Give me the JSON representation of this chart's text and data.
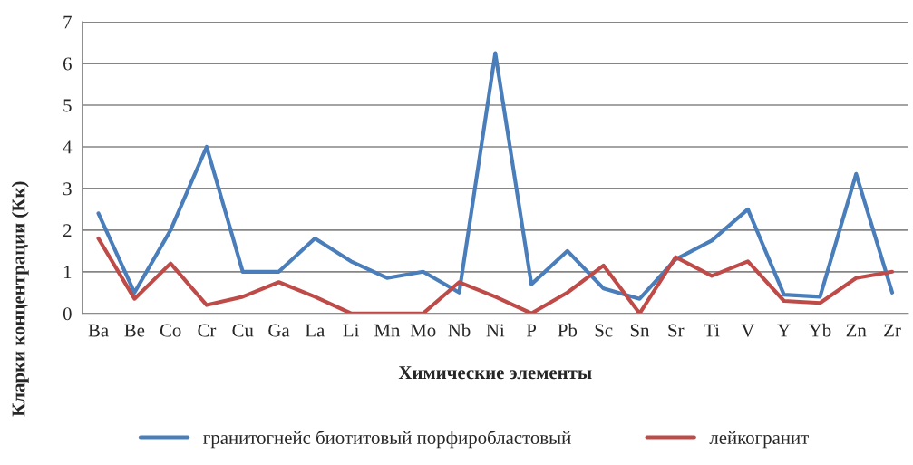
{
  "chart_data": {
    "type": "line",
    "xlabel": "Химические элементы",
    "ylabel": "Кларки концентрации (Кк)",
    "categories": [
      "Ba",
      "Be",
      "Co",
      "Cr",
      "Cu",
      "Ga",
      "La",
      "Li",
      "Mn",
      "Mo",
      "Nb",
      "Ni",
      "P",
      "Pb",
      "Sc",
      "Sn",
      "Sr",
      "Ti",
      "V",
      "Y",
      "Yb",
      "Zn",
      "Zr"
    ],
    "series": [
      {
        "name": "гранитогнейс биотитовый порфиробластовый",
        "color": "#4a7ebb",
        "values": [
          2.4,
          0.5,
          2.0,
          4.0,
          1.0,
          1.0,
          1.8,
          1.25,
          0.85,
          1.0,
          0.5,
          6.25,
          0.7,
          1.5,
          0.6,
          0.35,
          1.3,
          1.75,
          2.5,
          0.45,
          0.4,
          3.35,
          0.5
        ]
      },
      {
        "name": "лейкогранит",
        "color": "#be4b48",
        "values": [
          1.8,
          0.35,
          1.2,
          0.2,
          0.4,
          0.75,
          0.4,
          0.0,
          0.0,
          0.0,
          0.75,
          0.4,
          0.0,
          0.5,
          1.15,
          0.0,
          1.35,
          0.9,
          1.25,
          0.3,
          0.25,
          0.85,
          1.0
        ]
      }
    ],
    "ylim": [
      0,
      7
    ],
    "yticks": [
      0,
      1,
      2,
      3,
      4,
      5,
      6,
      7
    ],
    "grid": "y",
    "legend": "bottom",
    "marker": "none",
    "line_style": "solid"
  }
}
